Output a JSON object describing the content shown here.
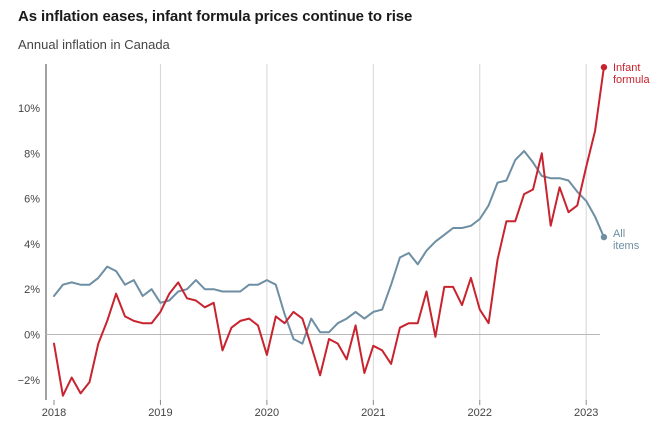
{
  "chart_data": {
    "type": "line",
    "title": "As inflation eases, infant formula prices continue to rise",
    "subtitle": "Annual inflation in Canada",
    "xlabel": "",
    "ylabel": "",
    "x_unit": "month",
    "x_start": "2018-01",
    "xlim": [
      "2018-01",
      "2023-03"
    ],
    "ylim": [
      -2.8,
      11.8
    ],
    "y_ticks": [
      -2,
      0,
      2,
      4,
      6,
      8,
      10
    ],
    "y_tick_labels": [
      "−2%",
      "0%",
      "2%",
      "4%",
      "6%",
      "8%",
      "10%"
    ],
    "x_ticks": [
      "2018-01",
      "2019-01",
      "2020-01",
      "2021-01",
      "2022-01",
      "2023-01"
    ],
    "x_tick_labels": [
      "2018",
      "2019",
      "2020",
      "2021",
      "2022",
      "2023"
    ],
    "grid": "vertical",
    "legend": "direct labels at line ends",
    "x": [
      "2018-01",
      "2018-02",
      "2018-03",
      "2018-04",
      "2018-05",
      "2018-06",
      "2018-07",
      "2018-08",
      "2018-09",
      "2018-10",
      "2018-11",
      "2018-12",
      "2019-01",
      "2019-02",
      "2019-03",
      "2019-04",
      "2019-05",
      "2019-06",
      "2019-07",
      "2019-08",
      "2019-09",
      "2019-10",
      "2019-11",
      "2019-12",
      "2020-01",
      "2020-02",
      "2020-03",
      "2020-04",
      "2020-05",
      "2020-06",
      "2020-07",
      "2020-08",
      "2020-09",
      "2020-10",
      "2020-11",
      "2020-12",
      "2021-01",
      "2021-02",
      "2021-03",
      "2021-04",
      "2021-05",
      "2021-06",
      "2021-07",
      "2021-08",
      "2021-09",
      "2021-10",
      "2021-11",
      "2021-12",
      "2022-01",
      "2022-02",
      "2022-03",
      "2022-04",
      "2022-05",
      "2022-06",
      "2022-07",
      "2022-08",
      "2022-09",
      "2022-10",
      "2022-11",
      "2022-12",
      "2023-01",
      "2023-02",
      "2023-03"
    ],
    "series": [
      {
        "name": "All items",
        "label_lines": [
          "All",
          "items"
        ],
        "color": "#6e8fa3",
        "values": [
          1.7,
          2.2,
          2.3,
          2.2,
          2.2,
          2.5,
          3.0,
          2.8,
          2.2,
          2.4,
          1.7,
          2.0,
          1.4,
          1.5,
          1.9,
          2.0,
          2.4,
          2.0,
          2.0,
          1.9,
          1.9,
          1.9,
          2.2,
          2.2,
          2.4,
          2.2,
          0.9,
          -0.2,
          -0.4,
          0.7,
          0.1,
          0.1,
          0.5,
          0.7,
          1.0,
          0.7,
          1.0,
          1.1,
          2.2,
          3.4,
          3.6,
          3.1,
          3.7,
          4.1,
          4.4,
          4.7,
          4.7,
          4.8,
          5.1,
          5.7,
          6.7,
          6.8,
          7.7,
          8.1,
          7.6,
          7.0,
          6.9,
          6.9,
          6.8,
          6.3,
          5.9,
          5.2,
          4.3
        ]
      },
      {
        "name": "Infant formula",
        "label_lines": [
          "Infant",
          "formula"
        ],
        "color": "#c8242f",
        "values": [
          -0.4,
          -2.7,
          -1.9,
          -2.6,
          -2.1,
          -0.4,
          0.6,
          1.8,
          0.8,
          0.6,
          0.5,
          0.5,
          1.0,
          1.8,
          2.3,
          1.6,
          1.5,
          1.2,
          1.4,
          -0.7,
          0.3,
          0.6,
          0.7,
          0.4,
          -0.9,
          0.8,
          0.5,
          1.0,
          0.7,
          -0.5,
          -1.8,
          -0.2,
          -0.4,
          -1.1,
          0.4,
          -1.7,
          -0.5,
          -0.7,
          -1.3,
          0.3,
          0.5,
          0.5,
          1.9,
          -0.1,
          2.1,
          2.1,
          1.3,
          2.5,
          1.1,
          0.5,
          3.3,
          5.0,
          5.0,
          6.2,
          6.4,
          8.0,
          4.8,
          6.5,
          5.4,
          5.7,
          7.4,
          9.0,
          11.8
        ]
      }
    ]
  }
}
